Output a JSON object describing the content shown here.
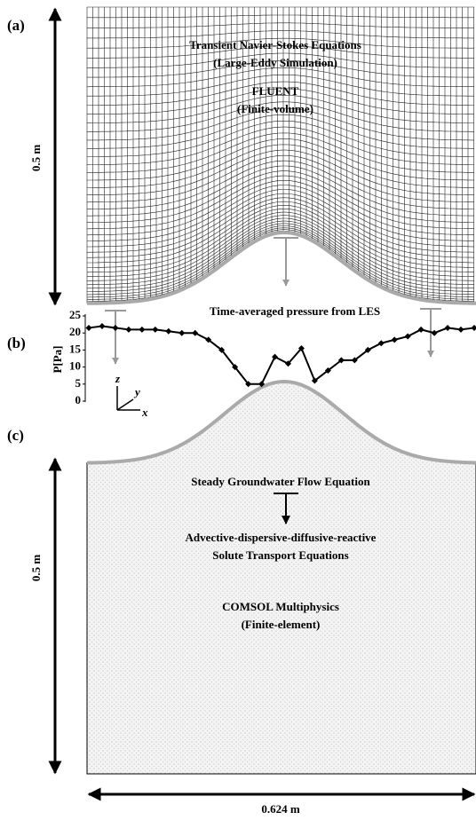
{
  "figure": {
    "panel_a": {
      "label": "(a)",
      "height": "0.5 m",
      "lines": [
        "Transient Navier-Stokes Equations",
        "(Large-Eddy Simulation)",
        "FLUENT",
        "(Finite-volume)"
      ]
    },
    "panel_b": {
      "label": "(b)",
      "note": "Time-averaged pressure from LES",
      "axes": [
        "z",
        "y",
        "x"
      ]
    },
    "panel_c": {
      "label": "(c)",
      "height": "0.5 m",
      "width": "0.624 m",
      "lines": [
        "Steady Groundwater Flow Equation",
        "Advective-dispersive-diffusive-reactive",
        "Solute Transport Equations",
        "COMSOL Multiphysics",
        "(Finite-element)"
      ]
    }
  },
  "chart_data": {
    "type": "line",
    "y_label": "P[Pa]",
    "color": "#000000",
    "values": [
      21.5,
      22,
      21.5,
      21,
      21,
      21,
      20.5,
      20,
      20,
      18,
      15,
      10,
      5,
      5,
      13,
      11,
      15.5,
      6,
      9,
      12,
      12,
      15,
      17,
      18,
      19,
      21,
      20,
      21.5,
      21,
      21.5
    ],
    "ylim": [
      0,
      25
    ],
    "yticks": [
      0,
      5,
      10,
      15,
      20,
      25
    ]
  }
}
